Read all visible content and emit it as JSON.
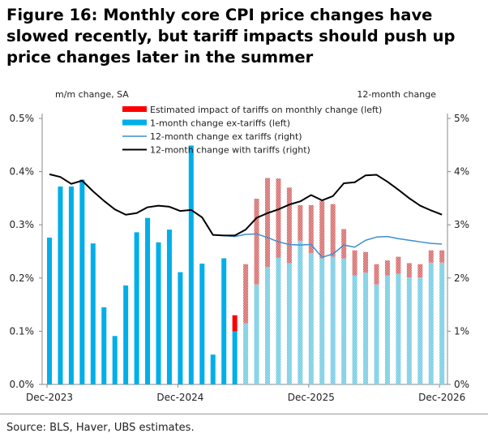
{
  "title": "Figure 16: Monthly core CPI price changes have slowed recently, but tariff impacts should push up price changes later in the summer",
  "source": "Source: BLS, Haver, UBS estimates.",
  "chart_data": {
    "type": "bar",
    "title": "Figure 16: Monthly core CPI price changes have slowed recently, but tariff impacts should push up price changes later in the summer",
    "ylabel_left": "m/m change, SA",
    "ylabel_right": "12-month change",
    "ylim_left": [
      0,
      0.5
    ],
    "ylim_right": [
      0,
      5
    ],
    "yticks_left": [
      "0.0%",
      "0.1%",
      "0.2%",
      "0.3%",
      "0.4%",
      "0.5%"
    ],
    "yticks_right": [
      "0%",
      "1%",
      "2%",
      "3%",
      "4%",
      "5%"
    ],
    "xtick_labels": [
      "Dec-2023",
      "Dec-2024",
      "Dec-2025",
      "Dec-2026"
    ],
    "grid": false,
    "legend_position": "top-center",
    "colors": {
      "tariff_impact": "#ff0000",
      "ex_tariffs": "#00aee8",
      "forecast_ex_tariffs": "#7fcfe3",
      "forecast_tariff": "#d46a6a",
      "line_ex": "#3d8fd1",
      "line_with": "#000000"
    },
    "categories": [
      "Dec-2023",
      "Jan-2024",
      "Feb-2024",
      "Mar-2024",
      "Apr-2024",
      "May-2024",
      "Jun-2024",
      "Jul-2024",
      "Aug-2024",
      "Sep-2024",
      "Oct-2024",
      "Nov-2024",
      "Dec-2024",
      "Jan-2025",
      "Feb-2025",
      "Mar-2025",
      "Apr-2025",
      "May-2025",
      "Jun-2025",
      "Jul-2025",
      "Aug-2025",
      "Sep-2025",
      "Oct-2025",
      "Nov-2025",
      "Dec-2025",
      "Jan-2026",
      "Feb-2026",
      "Mar-2026",
      "Apr-2026",
      "May-2026",
      "Jun-2026",
      "Jul-2026",
      "Aug-2026",
      "Sep-2026",
      "Oct-2026",
      "Nov-2026",
      "Dec-2026"
    ],
    "forecast_start": "Jun-2025",
    "series": [
      {
        "name": "Estimated impact of tariffs on monthly change (left)",
        "type": "bar",
        "axis": "left",
        "values": [
          0,
          0,
          0,
          0,
          0,
          0,
          0,
          0,
          0,
          0,
          0,
          0,
          0,
          0,
          0,
          0,
          0,
          0.03,
          0.111,
          0.161,
          0.167,
          0.149,
          0.142,
          0.067,
          0.09,
          0.108,
          0.099,
          0.055,
          0.047,
          0.039,
          0.038,
          0.028,
          0.032,
          0.027,
          0.025,
          0.023,
          0.023
        ]
      },
      {
        "name": "1-month change ex-tariffs (left)",
        "type": "bar",
        "axis": "left",
        "values": [
          0.276,
          0.372,
          0.372,
          0.385,
          0.265,
          0.145,
          0.091,
          0.186,
          0.286,
          0.313,
          0.267,
          0.291,
          0.211,
          0.449,
          0.227,
          0.056,
          0.237,
          0.1,
          0.115,
          0.188,
          0.221,
          0.238,
          0.228,
          0.27,
          0.247,
          0.237,
          0.24,
          0.237,
          0.205,
          0.21,
          0.188,
          0.205,
          0.208,
          0.201,
          0.201,
          0.229,
          0.229
        ]
      },
      {
        "name": "12-month change ex tariffs (right)",
        "type": "line",
        "axis": "right",
        "values": [
          null,
          null,
          null,
          null,
          null,
          null,
          null,
          null,
          null,
          null,
          null,
          null,
          null,
          null,
          null,
          null,
          2.8,
          2.78,
          2.82,
          2.83,
          2.76,
          2.68,
          2.63,
          2.62,
          2.63,
          2.39,
          2.45,
          2.62,
          2.58,
          2.71,
          2.77,
          2.78,
          2.74,
          2.71,
          2.68,
          2.65,
          2.64
        ]
      },
      {
        "name": "12-month change with tariffs (right)",
        "type": "line",
        "axis": "right",
        "values": [
          3.95,
          3.9,
          3.77,
          3.83,
          3.63,
          3.45,
          3.29,
          3.19,
          3.22,
          3.33,
          3.36,
          3.34,
          3.26,
          3.28,
          3.14,
          2.81,
          2.8,
          2.8,
          2.91,
          3.13,
          3.22,
          3.29,
          3.38,
          3.44,
          3.56,
          3.46,
          3.54,
          3.78,
          3.8,
          3.93,
          3.94,
          3.81,
          3.66,
          3.5,
          3.36,
          3.27,
          3.19
        ]
      }
    ]
  }
}
